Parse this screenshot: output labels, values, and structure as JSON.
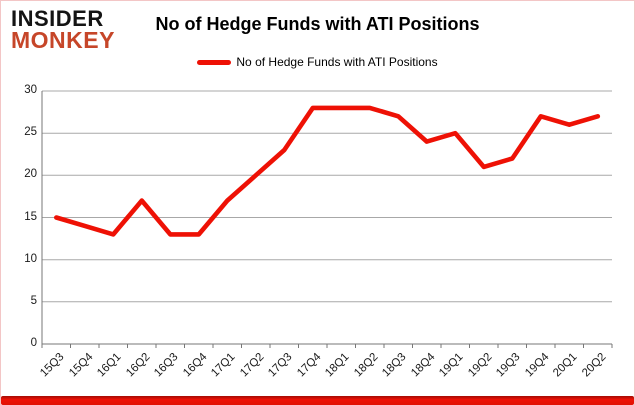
{
  "header": {
    "logo_line1": "INSIDER",
    "logo_line2": "MONKEY",
    "title": "No of Hedge Funds with ATI Positions"
  },
  "legend": {
    "label": "No of Hedge Funds with ATI Positions"
  },
  "colors": {
    "accent_red": "#ee1105",
    "logo_orange": "#c64629",
    "gridline_gray": "#a8a8a8",
    "axis_gray": "#777777"
  },
  "chart_data": {
    "type": "line",
    "title": "No of Hedge Funds with ATI Positions",
    "categories": [
      "15Q3",
      "15Q4",
      "16Q1",
      "16Q2",
      "16Q3",
      "16Q4",
      "17Q1",
      "17Q2",
      "17Q3",
      "17Q4",
      "18Q1",
      "18Q2",
      "18Q3",
      "18Q4",
      "19Q1",
      "19Q2",
      "19Q3",
      "19Q4",
      "20Q1",
      "20Q2"
    ],
    "series": [
      {
        "name": "No of Hedge Funds with ATI Positions",
        "color": "#ee1105",
        "values": [
          15,
          14,
          13,
          17,
          13,
          13,
          17,
          20,
          23,
          28,
          28,
          28,
          27,
          24,
          25,
          21,
          22,
          27,
          26,
          27
        ]
      }
    ],
    "xlabel": "",
    "ylabel": "",
    "ylim": [
      0,
      30
    ],
    "yticks": [
      0,
      5,
      10,
      15,
      20,
      25,
      30
    ],
    "grid": true,
    "legend_position": "top"
  }
}
